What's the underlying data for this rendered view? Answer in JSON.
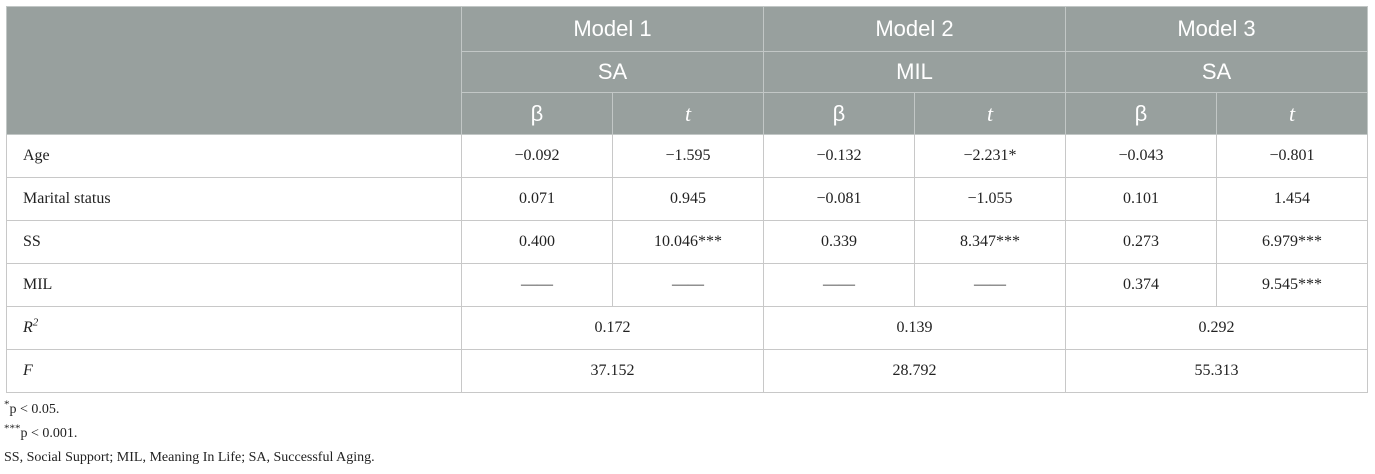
{
  "table": {
    "models": [
      {
        "name": "Model 1",
        "dependent": "SA"
      },
      {
        "name": "Model 2",
        "dependent": "MIL"
      },
      {
        "name": "Model 3",
        "dependent": "SA"
      }
    ],
    "subheaders": [
      "β",
      "t",
      "β",
      "t",
      "β",
      "t"
    ],
    "rows": [
      {
        "label": "Age",
        "cells": [
          "−0.092",
          "−1.595",
          "−0.132",
          "−2.231*",
          "−0.043",
          "−0.801"
        ]
      },
      {
        "label": "Marital status",
        "cells": [
          "0.071",
          "0.945",
          "−0.081",
          "−1.055",
          "0.101",
          "1.454"
        ]
      },
      {
        "label": "SS",
        "cells": [
          "0.400",
          "10.046***",
          "0.339",
          "8.347***",
          "0.273",
          "6.979***"
        ]
      },
      {
        "label": "MIL",
        "cells": [
          "——",
          "——",
          "——",
          "——",
          "0.374",
          "9.545***"
        ]
      }
    ],
    "r2": {
      "label": "R",
      "label_sup": "2",
      "values": [
        "0.172",
        "0.139",
        "0.292"
      ]
    },
    "f": {
      "label": "F",
      "values": [
        "37.152",
        "28.792",
        "55.313"
      ]
    }
  },
  "notes": [
    {
      "sup": "*",
      "text": "p < 0.05."
    },
    {
      "sup": "***",
      "text": "p < 0.001."
    },
    {
      "sup": "",
      "text": "SS, Social Support; MIL, Meaning In Life; SA, Successful Aging."
    }
  ]
}
